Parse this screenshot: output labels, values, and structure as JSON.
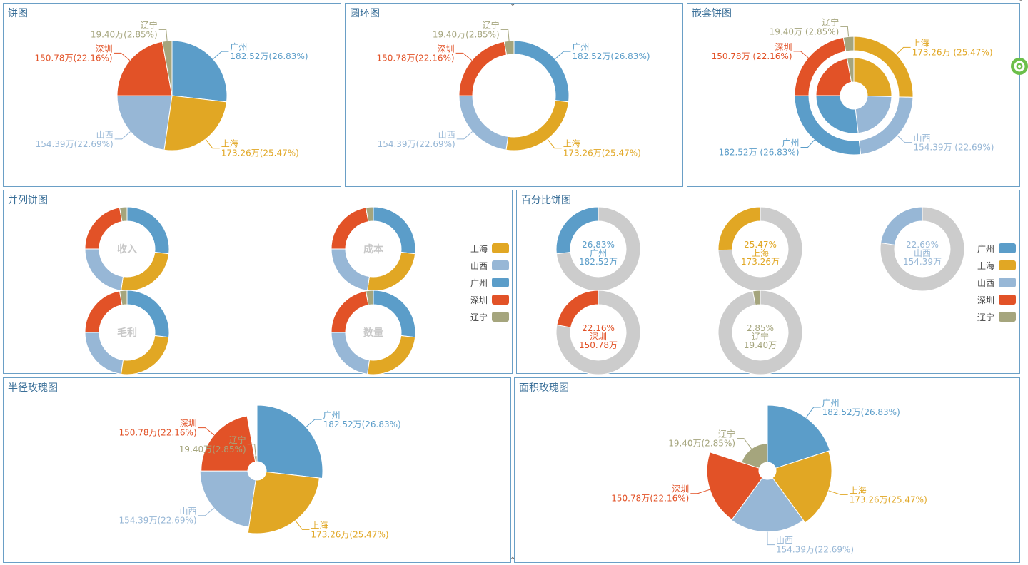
{
  "colors": {
    "广州": "#5b9dc9",
    "上海": "#e1a724",
    "山西": "#97b7d6",
    "深圳": "#e25227",
    "辽宁": "#a5a57d",
    "gray": "#cccccc"
  },
  "panels": {
    "p1": "饼图",
    "p2": "圆环图",
    "p3": "嵌套饼图",
    "p4": "并列饼图",
    "p5": "百分比饼图",
    "p6": "半径玫瑰图",
    "p7": "面积玫瑰图"
  },
  "chart_data": [
    {
      "type": "pie",
      "title": "饼图",
      "categories": [
        "广州",
        "上海",
        "山西",
        "深圳",
        "辽宁"
      ],
      "values": [
        182.52,
        173.26,
        154.39,
        150.78,
        19.4
      ],
      "labels": [
        "182.52万(26.83%)",
        "173.26万(25.47%)",
        "154.39万(22.69%)",
        "150.78万(22.16%)",
        "19.40万(2.85%)"
      ]
    },
    {
      "type": "pie",
      "title": "圆环图",
      "categories": [
        "广州",
        "上海",
        "山西",
        "深圳",
        "辽宁"
      ],
      "values": [
        182.52,
        173.26,
        154.39,
        150.78,
        19.4
      ],
      "labels": [
        "182.52万(26.83%)",
        "173.26万(25.47%)",
        "154.39万(22.69%)",
        "150.78万(22.16%)",
        "19.40万(2.85%)"
      ]
    },
    {
      "type": "pie",
      "title": "嵌套饼图",
      "categories": [
        "上海",
        "山西",
        "广州",
        "深圳",
        "辽宁"
      ],
      "values": [
        173.26,
        154.39,
        182.52,
        150.78,
        19.4
      ],
      "labels": [
        "173.26万 (25.47%)",
        "154.39万 (22.69%)",
        "182.52万 (26.83%)",
        "150.78万 (22.16%)",
        "19.40万 (2.85%)"
      ]
    },
    {
      "type": "pie",
      "title": "并列饼图",
      "legend": [
        "上海",
        "山西",
        "广州",
        "深圳",
        "辽宁"
      ],
      "charts": [
        "收入",
        "成本",
        "毛利",
        "数量"
      ],
      "categories": [
        "广州",
        "上海",
        "山西",
        "深圳",
        "辽宁"
      ],
      "values": [
        182.52,
        173.26,
        154.39,
        150.78,
        19.4
      ]
    },
    {
      "type": "pie",
      "title": "百分比饼图",
      "legend": [
        "广州",
        "上海",
        "山西",
        "深圳",
        "辽宁"
      ],
      "items": [
        {
          "name": "广州",
          "pct": "26.83%",
          "value": "182.52万",
          "ratio": 0.2683
        },
        {
          "name": "上海",
          "pct": "25.47%",
          "value": "173.26万",
          "ratio": 0.2547
        },
        {
          "name": "山西",
          "pct": "22.69%",
          "value": "154.39万",
          "ratio": 0.2269
        },
        {
          "name": "深圳",
          "pct": "22.16%",
          "value": "150.78万",
          "ratio": 0.2216
        },
        {
          "name": "辽宁",
          "pct": "2.85%",
          "value": "19.40万",
          "ratio": 0.0285
        }
      ]
    },
    {
      "type": "pie",
      "title": "半径玫瑰图",
      "categories": [
        "广州",
        "上海",
        "山西",
        "深圳",
        "辽宁"
      ],
      "values": [
        182.52,
        173.26,
        154.39,
        150.78,
        19.4
      ],
      "labels": [
        "182.52万(26.83%)",
        "173.26万(25.47%)",
        "154.39万(22.69%)",
        "150.78万(22.16%)",
        "19.40万(2.85%)"
      ]
    },
    {
      "type": "pie",
      "title": "面积玫瑰图",
      "categories": [
        "广州",
        "上海",
        "山西",
        "深圳",
        "辽宁"
      ],
      "values": [
        182.52,
        173.26,
        154.39,
        150.78,
        19.4
      ],
      "labels": [
        "182.52万(26.83%)",
        "173.26万(25.47%)",
        "154.39万(22.69%)",
        "150.78万(22.16%)",
        "19.40万(2.85%)"
      ]
    }
  ]
}
